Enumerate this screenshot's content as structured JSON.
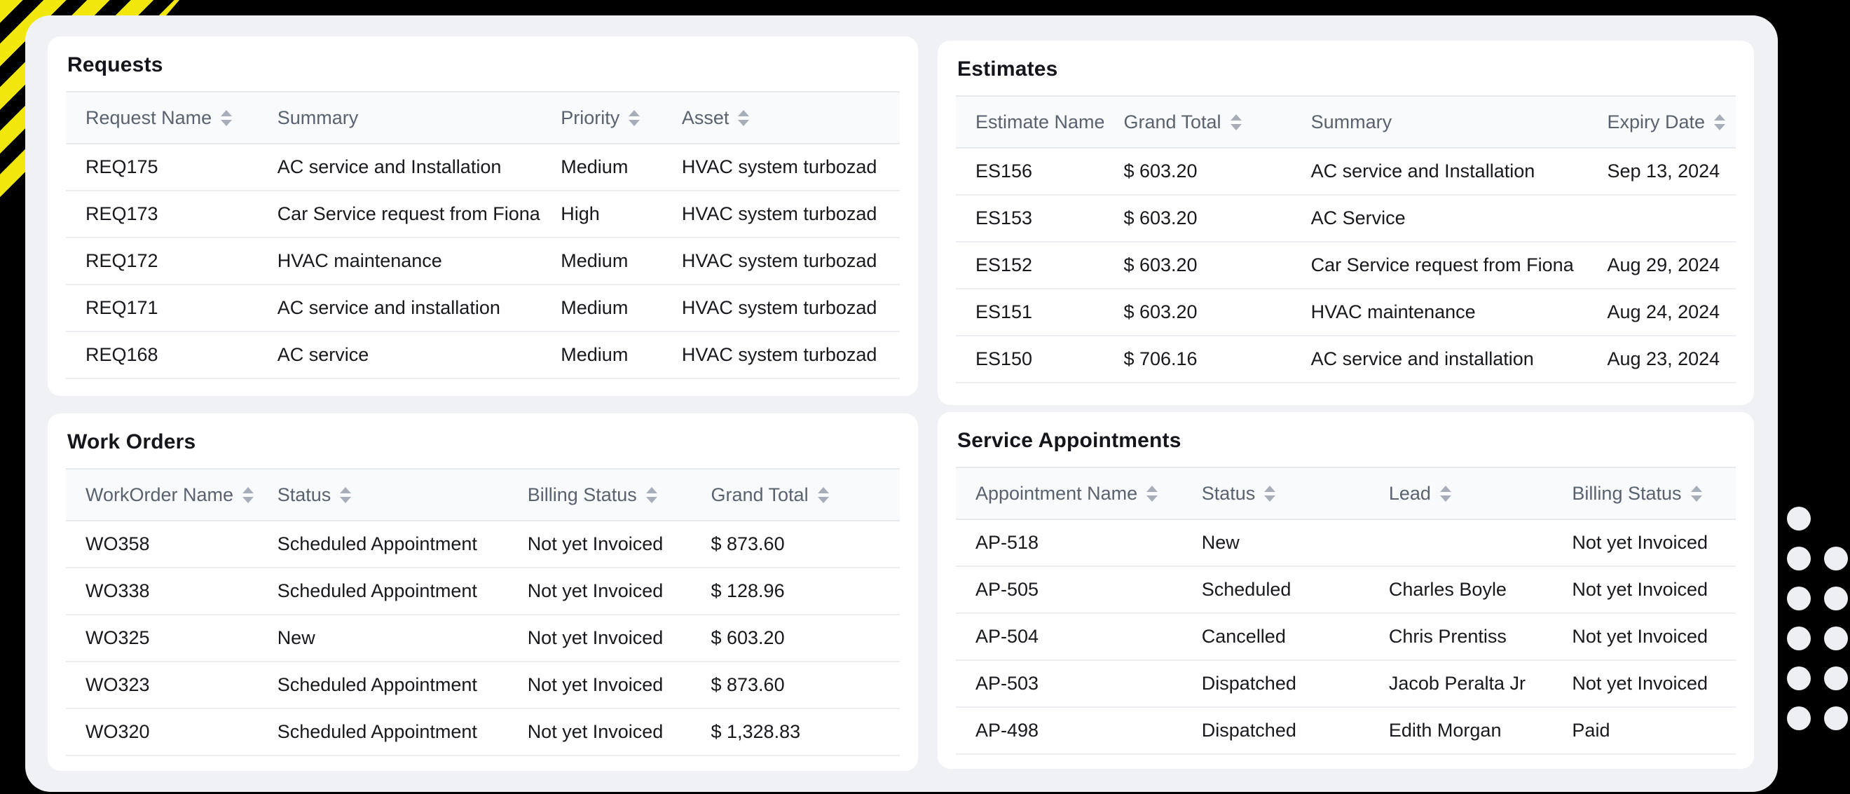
{
  "decor": {
    "background_color": "#000000",
    "stripe_yellow": "#f2e70c",
    "card_color": "#eff1f4",
    "dot_color": "#edeff2",
    "header_bg": "#f8fafb",
    "header_text_color": "#5a6270",
    "body_text_color": "#17191d"
  },
  "panels": [
    {
      "id": "requests",
      "title": "Requests",
      "columns": [
        {
          "label": "Request Name",
          "sortable": true
        },
        {
          "label": "Summary",
          "sortable": false
        },
        {
          "label": "Priority",
          "sortable": true
        },
        {
          "label": "Asset",
          "sortable": true
        }
      ],
      "rows": [
        [
          "REQ175",
          "AC service and Installation",
          "Medium",
          "HVAC system turbozad"
        ],
        [
          "REQ173",
          "Car Service request from Fiona",
          "High",
          "HVAC system turbozad"
        ],
        [
          "REQ172",
          "HVAC maintenance",
          "Medium",
          "HVAC system turbozad"
        ],
        [
          "REQ171",
          "AC service and installation",
          "Medium",
          "HVAC system turbozad"
        ],
        [
          "REQ168",
          "AC service",
          "Medium",
          "HVAC system turbozad"
        ]
      ]
    },
    {
      "id": "estimates",
      "title": "Estimates",
      "columns": [
        {
          "label": "Estimate Name",
          "sortable": true
        },
        {
          "label": "Grand Total",
          "sortable": true
        },
        {
          "label": "Summary",
          "sortable": false
        },
        {
          "label": "Expiry Date",
          "sortable": true
        }
      ],
      "rows": [
        [
          "ES156",
          "$ 603.20",
          "AC service and Installation",
          "Sep 13, 2024"
        ],
        [
          "ES153",
          "$ 603.20",
          "AC Service",
          ""
        ],
        [
          "ES152",
          "$ 603.20",
          "Car Service request from Fiona",
          "Aug 29, 2024"
        ],
        [
          "ES151",
          "$ 603.20",
          "HVAC maintenance",
          "Aug 24, 2024"
        ],
        [
          "ES150",
          "$ 706.16",
          "AC service and installation",
          "Aug 23, 2024"
        ]
      ]
    },
    {
      "id": "workorders",
      "title": "Work Orders",
      "columns": [
        {
          "label": "WorkOrder Name",
          "sortable": true
        },
        {
          "label": "Status",
          "sortable": true
        },
        {
          "label": "Billing Status",
          "sortable": true
        },
        {
          "label": "Grand Total",
          "sortable": true
        }
      ],
      "rows": [
        [
          "WO358",
          "Scheduled Appointment",
          "Not yet Invoiced",
          "$ 873.60"
        ],
        [
          "WO338",
          "Scheduled Appointment",
          "Not yet Invoiced",
          "$ 128.96"
        ],
        [
          "WO325",
          "New",
          "Not yet Invoiced",
          "$ 603.20"
        ],
        [
          "WO323",
          "Scheduled Appointment",
          "Not yet Invoiced",
          "$ 873.60"
        ],
        [
          "WO320",
          "Scheduled Appointment",
          "Not yet Invoiced",
          "$ 1,328.83"
        ]
      ]
    },
    {
      "id": "appointments",
      "title": "Service Appointments",
      "columns": [
        {
          "label": "Appointment Name",
          "sortable": true
        },
        {
          "label": "Status",
          "sortable": true
        },
        {
          "label": "Lead",
          "sortable": true
        },
        {
          "label": "Billing Status",
          "sortable": true
        }
      ],
      "rows": [
        [
          "AP-518",
          "New",
          "",
          "Not yet Invoiced"
        ],
        [
          "AP-505",
          "Scheduled",
          "Charles Boyle",
          "Not yet Invoiced"
        ],
        [
          "AP-504",
          "Cancelled",
          "Chris Prentiss",
          "Not yet Invoiced"
        ],
        [
          "AP-503",
          "Dispatched",
          "Jacob Peralta Jr",
          "Not yet Invoiced"
        ],
        [
          "AP-498",
          "Dispatched",
          "Edith Morgan",
          "Paid"
        ]
      ]
    }
  ]
}
